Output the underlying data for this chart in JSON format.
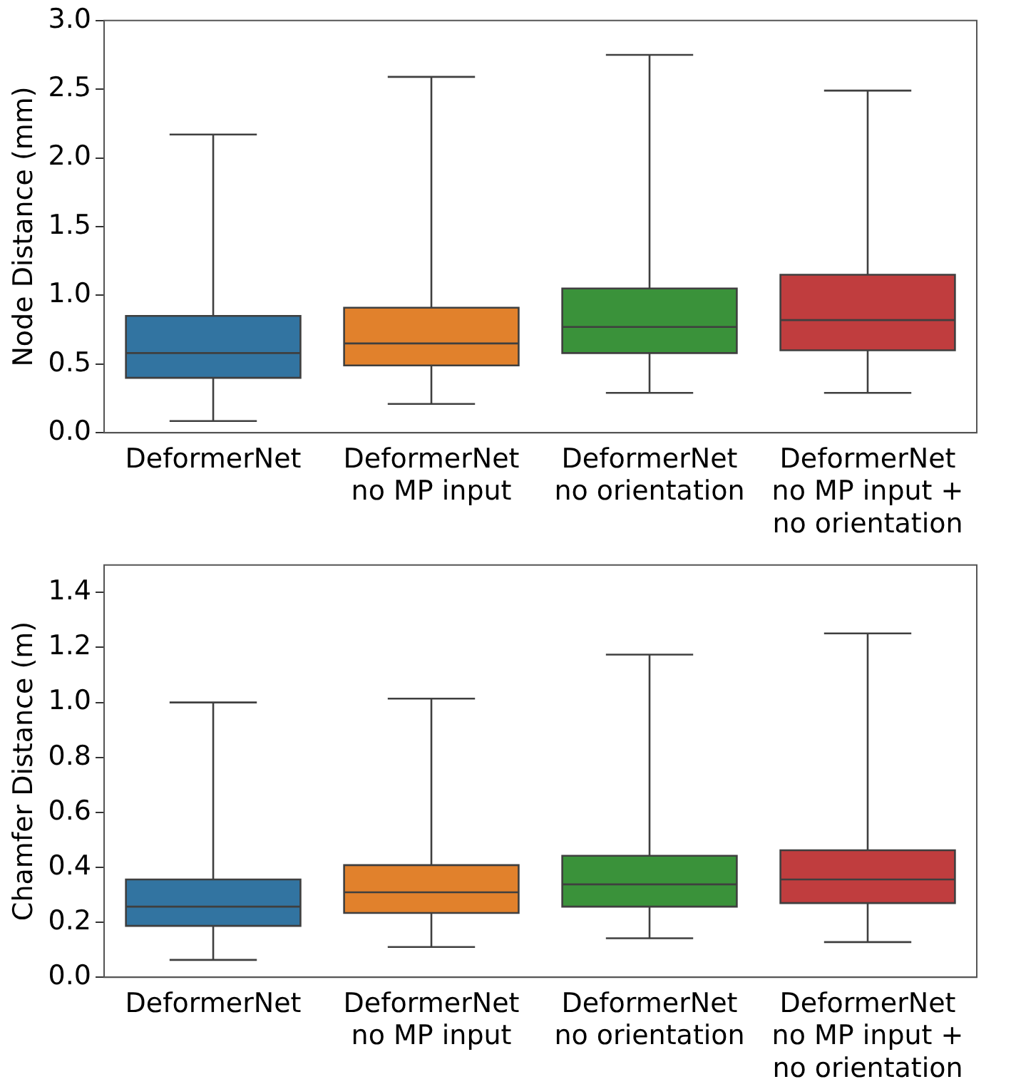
{
  "chart_data": [
    {
      "type": "box",
      "ylabel": "Node Distance (mm)",
      "categories": [
        "DeformerNet",
        "DeformerNet\nno MP input",
        "DeformerNet\nno orientation",
        "DeformerNet\nno MP input +\nno orientation"
      ],
      "colors": [
        "#3274a1",
        "#e1812c",
        "#3a923a",
        "#c03d3e"
      ],
      "boxes": [
        {
          "low": 0.085,
          "q1": 0.4,
          "median": 0.58,
          "q3": 0.85,
          "high": 2.17
        },
        {
          "low": 0.21,
          "q1": 0.49,
          "median": 0.65,
          "q3": 0.91,
          "high": 2.59
        },
        {
          "low": 0.29,
          "q1": 0.58,
          "median": 0.77,
          "q3": 1.05,
          "high": 2.75
        },
        {
          "low": 0.29,
          "q1": 0.6,
          "median": 0.82,
          "q3": 1.15,
          "high": 2.49
        }
      ],
      "ylim": [
        0,
        3
      ],
      "yticks": [
        {
          "value": 0,
          "label": "0.0"
        },
        {
          "value": 0.5,
          "label": "0.5"
        },
        {
          "value": 1,
          "label": "1.0"
        },
        {
          "value": 1.5,
          "label": "1.5"
        },
        {
          "value": 2,
          "label": "2.0"
        },
        {
          "value": 2.5,
          "label": "2.5"
        },
        {
          "value": 3,
          "label": "3.0"
        }
      ],
      "grid": false,
      "legend": false
    },
    {
      "type": "box",
      "ylabel": "Chamfer Distance (m)",
      "categories": [
        "DeformerNet",
        "DeformerNet\nno MP input",
        "DeformerNet\nno orientation",
        "DeformerNet\nno MP input +\nno orientation"
      ],
      "colors": [
        "#3274a1",
        "#e1812c",
        "#3a923a",
        "#c03d3e"
      ],
      "boxes": [
        {
          "low": 0.063,
          "q1": 0.187,
          "median": 0.257,
          "q3": 0.356,
          "high": 1.0
        },
        {
          "low": 0.11,
          "q1": 0.234,
          "median": 0.309,
          "q3": 0.408,
          "high": 1.014
        },
        {
          "low": 0.142,
          "q1": 0.257,
          "median": 0.338,
          "q3": 0.442,
          "high": 1.174
        },
        {
          "low": 0.128,
          "q1": 0.27,
          "median": 0.356,
          "q3": 0.462,
          "high": 1.251
        }
      ],
      "ylim": [
        0,
        1.5
      ],
      "yticks": [
        {
          "value": 0,
          "label": "0.0"
        },
        {
          "value": 0.2,
          "label": "0.2"
        },
        {
          "value": 0.4,
          "label": "0.4"
        },
        {
          "value": 0.6,
          "label": "0.6"
        },
        {
          "value": 0.8,
          "label": "0.8"
        },
        {
          "value": 1,
          "label": "1.0"
        },
        {
          "value": 1.2,
          "label": "1.2"
        },
        {
          "value": 1.4,
          "label": "1.4"
        }
      ],
      "grid": false,
      "legend": false
    }
  ]
}
